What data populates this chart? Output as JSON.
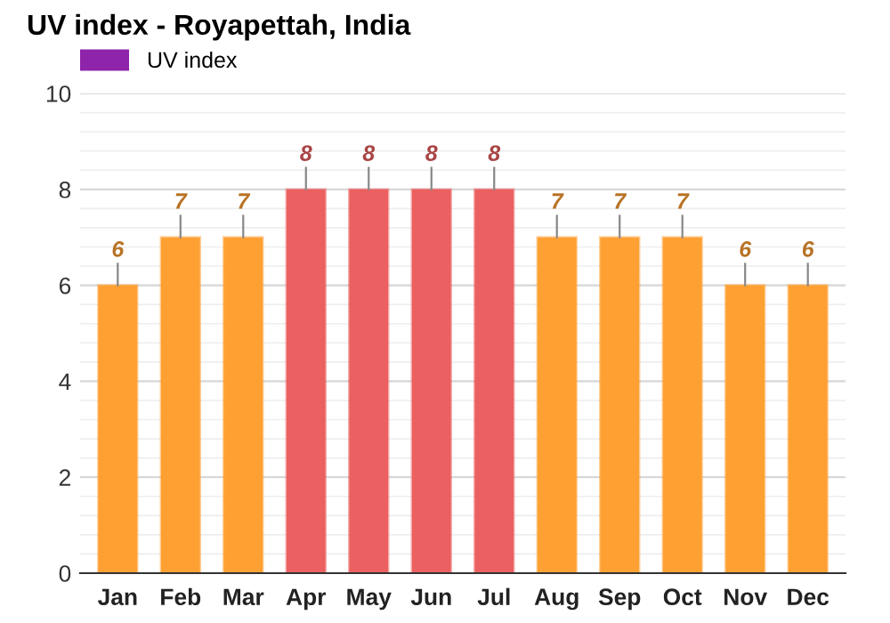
{
  "chart_data": {
    "type": "bar",
    "title": "UV index - Royapettah, India",
    "categories": [
      "Jan",
      "Feb",
      "Mar",
      "Apr",
      "May",
      "Jun",
      "Jul",
      "Aug",
      "Sep",
      "Oct",
      "Nov",
      "Dec"
    ],
    "series": [
      {
        "name": "UV index",
        "color": "#8e24aa",
        "values": [
          6,
          7,
          7,
          8,
          8,
          8,
          8,
          7,
          7,
          7,
          6,
          6
        ],
        "colors": [
          "#ffa033",
          "#ffa033",
          "#ffa033",
          "#eb6060",
          "#eb6060",
          "#eb6060",
          "#eb6060",
          "#ffa033",
          "#ffa033",
          "#ffa033",
          "#ffa033",
          "#ffa033"
        ]
      }
    ],
    "ylim": [
      0,
      10
    ],
    "yticks": [
      0,
      2,
      4,
      6,
      8,
      10
    ],
    "grid": "y",
    "legend": "top left",
    "data_labels": true
  }
}
